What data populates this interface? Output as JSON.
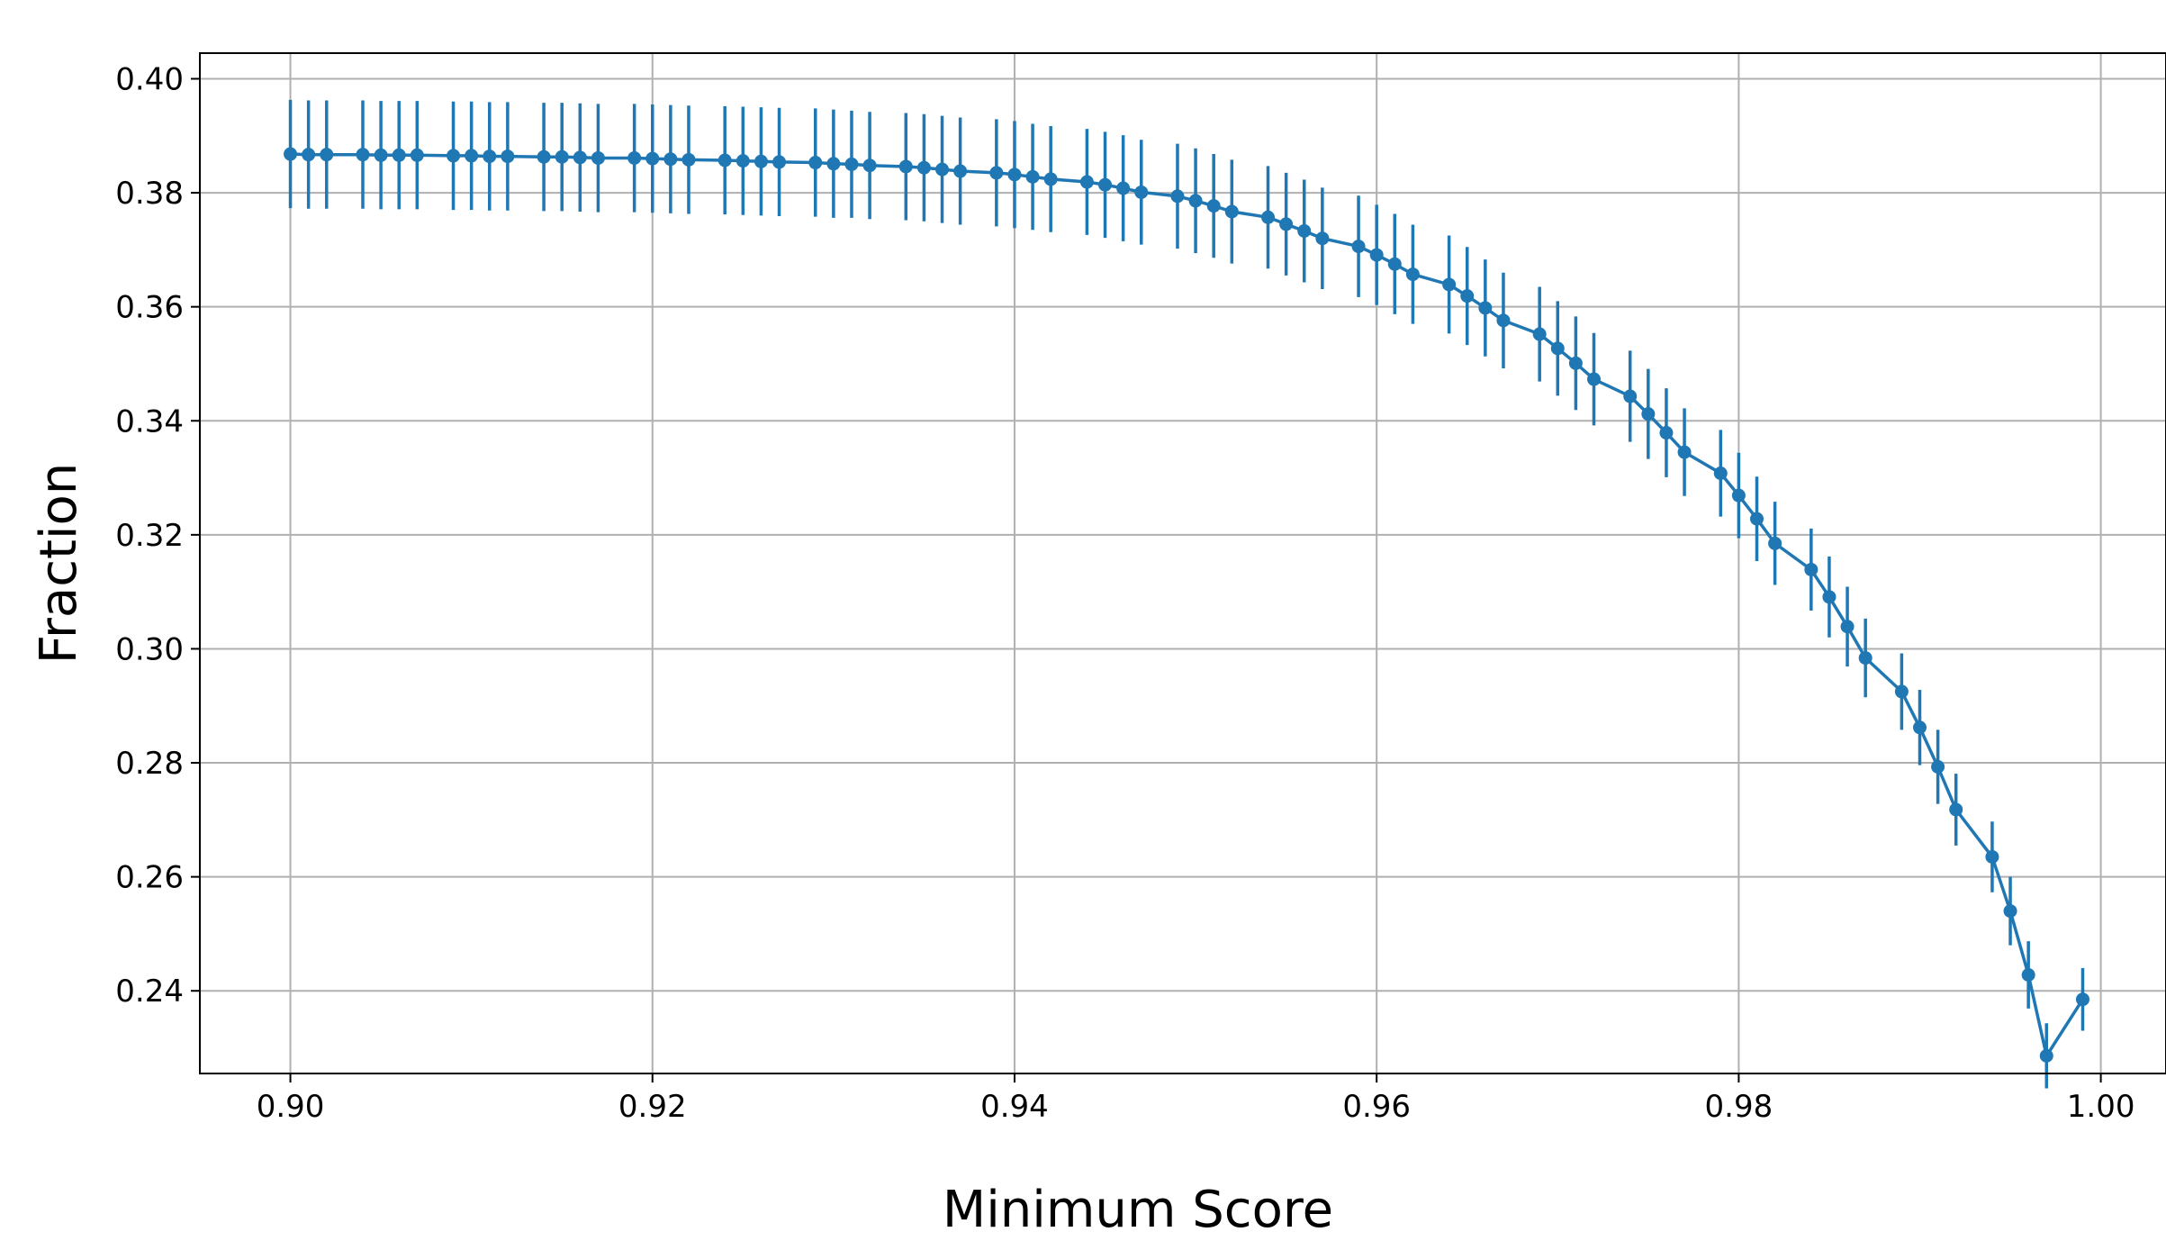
{
  "chart_data": {
    "type": "line",
    "title": "",
    "xlabel": "Minimum Score",
    "ylabel": "Fraction",
    "xlim": [
      0.895,
      1.0036
    ],
    "ylim": [
      0.2255,
      0.4045
    ],
    "xticks": [
      0.9,
      0.92,
      0.94,
      0.96,
      0.98,
      1.0
    ],
    "xtick_labels": [
      "0.90",
      "0.92",
      "0.94",
      "0.96",
      "0.98",
      "1.00"
    ],
    "yticks": [
      0.24,
      0.26,
      0.28,
      0.3,
      0.32,
      0.34,
      0.36,
      0.38,
      0.4
    ],
    "ytick_labels": [
      "0.24",
      "0.26",
      "0.28",
      "0.30",
      "0.32",
      "0.34",
      "0.36",
      "0.38",
      "0.40"
    ],
    "grid": true,
    "legend": false,
    "colors": {
      "series": "#1f77b4",
      "grid": "#b0b0b0",
      "axes": "#000000"
    },
    "series": [
      {
        "marker": "circle",
        "error_bars": true,
        "x": [
          0.9,
          0.901,
          0.902,
          0.904,
          0.905,
          0.906,
          0.907,
          0.909,
          0.91,
          0.911,
          0.912,
          0.914,
          0.915,
          0.916,
          0.917,
          0.919,
          0.92,
          0.921,
          0.922,
          0.924,
          0.925,
          0.926,
          0.927,
          0.929,
          0.93,
          0.931,
          0.932,
          0.934,
          0.935,
          0.936,
          0.937,
          0.939,
          0.94,
          0.941,
          0.942,
          0.944,
          0.945,
          0.946,
          0.947,
          0.949,
          0.95,
          0.951,
          0.952,
          0.954,
          0.955,
          0.956,
          0.957,
          0.959,
          0.96,
          0.961,
          0.962,
          0.964,
          0.965,
          0.966,
          0.967,
          0.969,
          0.97,
          0.971,
          0.972,
          0.974,
          0.975,
          0.976,
          0.977,
          0.979,
          0.98,
          0.981,
          0.982,
          0.984,
          0.985,
          0.986,
          0.987,
          0.989,
          0.99,
          0.991,
          0.992,
          0.994,
          0.995,
          0.996,
          0.997,
          0.999
        ],
        "y": [
          0.3868,
          0.3867,
          0.3867,
          0.3867,
          0.3866,
          0.3866,
          0.3866,
          0.3865,
          0.3865,
          0.3864,
          0.3864,
          0.3863,
          0.3863,
          0.3862,
          0.3861,
          0.3861,
          0.386,
          0.3859,
          0.3858,
          0.3857,
          0.3856,
          0.3855,
          0.3854,
          0.3853,
          0.3851,
          0.385,
          0.3848,
          0.3846,
          0.3844,
          0.3841,
          0.3838,
          0.3835,
          0.3832,
          0.3828,
          0.3824,
          0.3819,
          0.3814,
          0.3808,
          0.3801,
          0.3794,
          0.3786,
          0.3777,
          0.3767,
          0.3757,
          0.3745,
          0.3733,
          0.372,
          0.3706,
          0.3691,
          0.3675,
          0.3657,
          0.3639,
          0.3619,
          0.3598,
          0.3576,
          0.3552,
          0.3527,
          0.3501,
          0.3473,
          0.3443,
          0.3412,
          0.3379,
          0.3345,
          0.3308,
          0.3269,
          0.3228,
          0.3185,
          0.3139,
          0.3091,
          0.3039,
          0.2984,
          0.2925,
          0.2862,
          0.2793,
          0.2718,
          0.2635,
          0.254,
          0.2428,
          0.2286,
          0.2385
        ],
        "error": [
          0.0095,
          0.0095,
          0.0095,
          0.0095,
          0.0095,
          0.0095,
          0.0095,
          0.0095,
          0.0095,
          0.0095,
          0.0095,
          0.0095,
          0.0095,
          0.0095,
          0.0095,
          0.0095,
          0.0095,
          0.0095,
          0.0095,
          0.0095,
          0.0095,
          0.0095,
          0.0095,
          0.0095,
          0.0095,
          0.0094,
          0.0094,
          0.0094,
          0.0094,
          0.0094,
          0.0094,
          0.0094,
          0.0094,
          0.0093,
          0.0093,
          0.0093,
          0.0093,
          0.0093,
          0.0092,
          0.0092,
          0.0092,
          0.0091,
          0.0091,
          0.009,
          0.009,
          0.009,
          0.0089,
          0.0089,
          0.0088,
          0.0088,
          0.0087,
          0.0086,
          0.0086,
          0.0085,
          0.0084,
          0.0083,
          0.0083,
          0.0082,
          0.0081,
          0.008,
          0.0079,
          0.0078,
          0.0077,
          0.0076,
          0.0075,
          0.0074,
          0.0073,
          0.0072,
          0.0071,
          0.007,
          0.0069,
          0.0067,
          0.0066,
          0.0065,
          0.0063,
          0.0062,
          0.006,
          0.0059,
          0.0057,
          0.0055
        ]
      }
    ]
  }
}
